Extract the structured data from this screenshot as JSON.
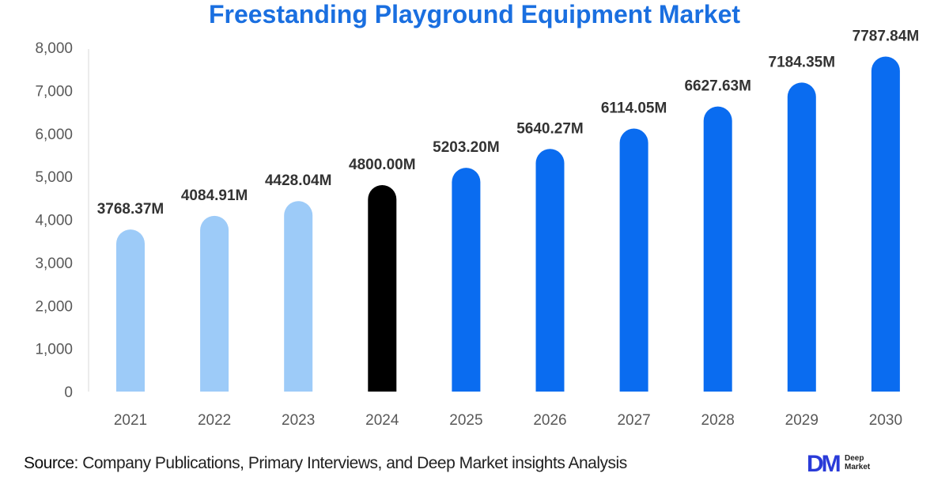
{
  "chart_data": {
    "type": "bar",
    "title": "Freestanding Playground Equipment Market",
    "categories": [
      "2021",
      "2022",
      "2023",
      "2024",
      "2025",
      "2026",
      "2027",
      "2028",
      "2029",
      "2030"
    ],
    "values": [
      3768.37,
      4084.91,
      4428.04,
      4800.0,
      5203.2,
      5640.27,
      6114.05,
      6627.63,
      7184.35,
      7787.84
    ],
    "data_labels": [
      "3768.37M",
      "4084.91M",
      "4428.04M",
      "4800.00M",
      "5203.20M",
      "5640.27M",
      "6114.05M",
      "6627.63M",
      "7184.35M",
      "7787.84M"
    ],
    "bar_colors": [
      "#9dcbf8",
      "#9dcbf8",
      "#9dcbf8",
      "#000000",
      "#0a6cf0",
      "#0a6cf0",
      "#0a6cf0",
      "#0a6cf0",
      "#0a6cf0",
      "#0a6cf0"
    ],
    "ylim": [
      0,
      8000
    ],
    "yticks": [
      "0",
      "1,000",
      "2,000",
      "3,000",
      "4,000",
      "5,000",
      "6,000",
      "7,000",
      "8,000"
    ],
    "xlabel": "",
    "ylabel": "",
    "grid": false,
    "legend": "none"
  },
  "footer": {
    "source_label": "Source",
    "source_text": ": Company Publications, Primary Interviews, and Deep Market insights Analysis",
    "logo_mark": "DM",
    "logo_text": "Deep Market"
  }
}
